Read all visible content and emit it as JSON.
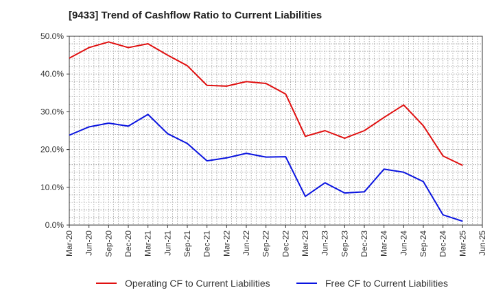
{
  "chart_data": {
    "type": "line",
    "title": "[9433]  Trend of Cashflow Ratio to Current Liabilities",
    "xlabel": "",
    "ylabel": "",
    "ylim": [
      0,
      50
    ],
    "y_ticks": [
      "0.0%",
      "10.0%",
      "20.0%",
      "30.0%",
      "40.0%",
      "50.0%"
    ],
    "y_tick_values": [
      0,
      10,
      20,
      30,
      40,
      50
    ],
    "categories": [
      "Mar-20",
      "Jun-20",
      "Sep-20",
      "Dec-20",
      "Mar-21",
      "Jun-21",
      "Sep-21",
      "Dec-21",
      "Mar-22",
      "Jun-22",
      "Sep-22",
      "Dec-22",
      "Mar-23",
      "Jun-23",
      "Sep-23",
      "Dec-23",
      "Mar-24",
      "Jun-24",
      "Sep-24",
      "Dec-24",
      "Mar-25",
      "Jun-25"
    ],
    "grid": true,
    "legend_position": "bottom",
    "series": [
      {
        "name": "Operating CF to Current Liabilities",
        "color": "#e01010",
        "values": [
          44.2,
          47.0,
          48.5,
          47.0,
          48.0,
          45.0,
          42.2,
          37.0,
          36.8,
          38.0,
          37.5,
          34.7,
          23.5,
          25.0,
          23.0,
          25.0,
          28.5,
          31.8,
          26.3,
          18.3,
          15.8,
          null
        ]
      },
      {
        "name": "Free CF to Current Liabilities",
        "color": "#0a14e0",
        "values": [
          23.8,
          26.0,
          27.0,
          26.2,
          29.3,
          24.2,
          21.6,
          17.0,
          17.8,
          19.0,
          18.0,
          18.1,
          7.6,
          11.2,
          8.5,
          8.8,
          14.8,
          14.0,
          11.5,
          2.7,
          1.0,
          null
        ]
      }
    ]
  }
}
